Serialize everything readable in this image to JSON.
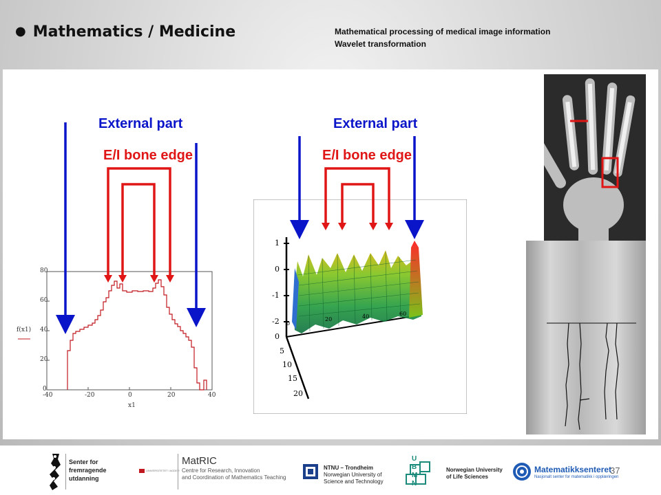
{
  "slide": {
    "title": "Mathematics / Medicine",
    "subtitle_line1": "Mathematical processing of medical image information",
    "subtitle_line2": "Wavelet transformation",
    "page_number": "37"
  },
  "annotations": {
    "external_part_left": "External part",
    "external_part_right": "External part",
    "bone_edge_left": "E/I bone edge",
    "bone_edge_right": "E/I bone edge",
    "blue_color": "#0a14c8",
    "red_color": "#e01515"
  },
  "profile_plot": {
    "y_label": "f(x1)",
    "x_label": "x1",
    "y_ticks": [
      "0",
      "20",
      "40",
      "60",
      "80"
    ],
    "x_ticks": [
      "-40",
      "-20",
      "0",
      "20",
      "40"
    ]
  },
  "surface_plot": {
    "z_ticks": [
      "1",
      "0",
      "-1",
      "-2"
    ],
    "depth_ticks": [
      "0",
      "5",
      "10",
      "15",
      "20"
    ],
    "x_ticks": [
      "0",
      "20",
      "40",
      "60"
    ]
  },
  "footer": {
    "logo1_line1": "Senter for",
    "logo1_line2": "fremragende",
    "logo1_line3": "utdanning",
    "logo2_small": "UNIVERSITETET I AGDER",
    "logo2_title": "MatRIC",
    "logo2_line2": "Centre for Research, Innovation",
    "logo2_line3": "and Coordination of Mathematics Teaching",
    "logo3_line1": "NTNU – Trondheim",
    "logo3_line2": "Norwegian University of",
    "logo3_line3": "Science and Technology",
    "logo4_letters": "U B M N",
    "logo4_line1": "Norwegian University",
    "logo4_line2": "of Life Sciences",
    "logo5_title": "Matematikksenteret",
    "logo5_sub": "Nasjonalt senter for matematikk i opplæringen"
  }
}
